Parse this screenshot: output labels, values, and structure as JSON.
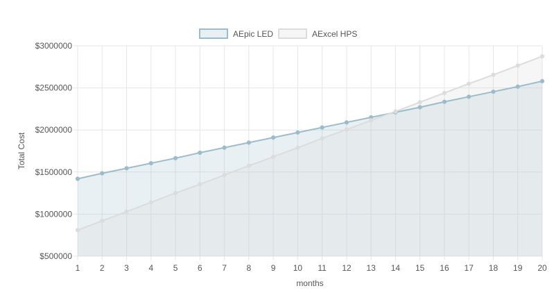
{
  "chart_data": {
    "type": "area",
    "x": [
      1,
      2,
      3,
      4,
      5,
      6,
      7,
      8,
      9,
      10,
      11,
      12,
      13,
      14,
      15,
      16,
      17,
      18,
      19,
      20
    ],
    "series": [
      {
        "name": "AEpic LED",
        "values": [
          1420000,
          1485000,
          1545000,
          1605000,
          1665000,
          1730000,
          1790000,
          1850000,
          1910000,
          1970000,
          2030000,
          2090000,
          2150000,
          2210000,
          2270000,
          2335000,
          2395000,
          2455000,
          2515000,
          2580000
        ],
        "color": "#9bbccb",
        "fill": "rgba(155,188,203,0.22)"
      },
      {
        "name": "AExcel HPS",
        "values": [
          810000,
          920000,
          1030000,
          1140000,
          1250000,
          1355000,
          1465000,
          1575000,
          1680000,
          1790000,
          1900000,
          2005000,
          2115000,
          2220000,
          2330000,
          2440000,
          2550000,
          2655000,
          2765000,
          2875000
        ],
        "color": "#dcdcdc",
        "fill": "rgba(215,215,215,0.22)"
      }
    ],
    "xlabel": "months",
    "ylabel": "Total Cost",
    "ylim": [
      500000,
      3000000
    ],
    "yticks": [
      500000,
      1000000,
      1500000,
      2000000,
      2500000,
      3000000
    ],
    "ytick_labels": [
      "$500000",
      "$1000000",
      "$1500000",
      "$2000000",
      "$2500000",
      "$3000000"
    ],
    "xtick_labels": [
      "1",
      "2",
      "3",
      "4",
      "5",
      "6",
      "7",
      "8",
      "9",
      "10",
      "11",
      "12",
      "13",
      "14",
      "15",
      "16",
      "17",
      "18",
      "19",
      "20"
    ],
    "grid": true,
    "legend_position": "top-center"
  }
}
